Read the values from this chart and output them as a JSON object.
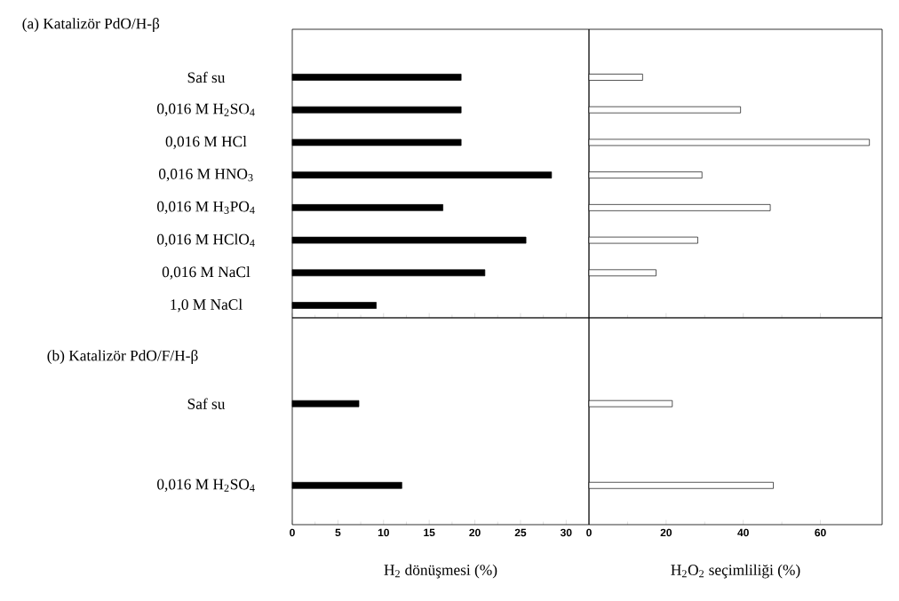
{
  "chart_data": [
    {
      "type": "bar",
      "orientation": "horizontal",
      "title": "(a) Katalizör PdO/H-β",
      "categories": [
        "Saf su",
        "0,016 M H$_{2}$SO$_{4}$",
        "0,016 M HCl",
        "0,016 M HNO$_{3}$",
        "0,016 M H$_{3}$PO$_{4}$",
        "0,016 M HClO$_{4}$",
        "0,016 M NaCl",
        "1,0 M NaCl"
      ],
      "values": [
        18.5,
        18.5,
        18.5,
        28.4,
        16.5,
        25.6,
        21.1,
        9.2
      ],
      "color": "#000000",
      "xlim": [
        0,
        32.5
      ],
      "xticks": [
        0,
        5,
        10,
        15,
        20,
        25,
        30
      ],
      "tick_labels": "y"
    },
    {
      "type": "bar",
      "orientation": "horizontal",
      "categories": [
        null,
        null,
        null,
        null,
        null,
        null,
        null,
        null
      ],
      "values": [
        13.9,
        39.3,
        72.7,
        29.3,
        47.0,
        28.2,
        17.4,
        null
      ],
      "color": "#ffffff",
      "xlim": [
        0,
        76
      ],
      "xticks": [
        0,
        20,
        40,
        60
      ],
      "tick_labels": false
    },
    {
      "type": "bar",
      "orientation": "horizontal",
      "title": "(b) Katalizör PdO/F/H-β",
      "categories": [
        "Saf su",
        "0,016 M H$_{2}$SO$_{4}$"
      ],
      "values": [
        7.3,
        12.0
      ],
      "color": "#000000",
      "xlim": [
        0,
        32.5
      ],
      "xticks": [
        0,
        5,
        10,
        15,
        20,
        25,
        30
      ],
      "xlabel": "H$_{2}$ dönüşmesi (%)"
    },
    {
      "type": "bar",
      "orientation": "horizontal",
      "categories": [
        null,
        null
      ],
      "values": [
        21.6,
        47.8
      ],
      "color": "#ffffff",
      "xlim": [
        0,
        76
      ],
      "xticks": [
        0,
        20,
        40,
        60
      ],
      "xlabel": "H$_{2}$O$_{2}$ seçimliliği (%)",
      "tick_labels": "x"
    }
  ]
}
